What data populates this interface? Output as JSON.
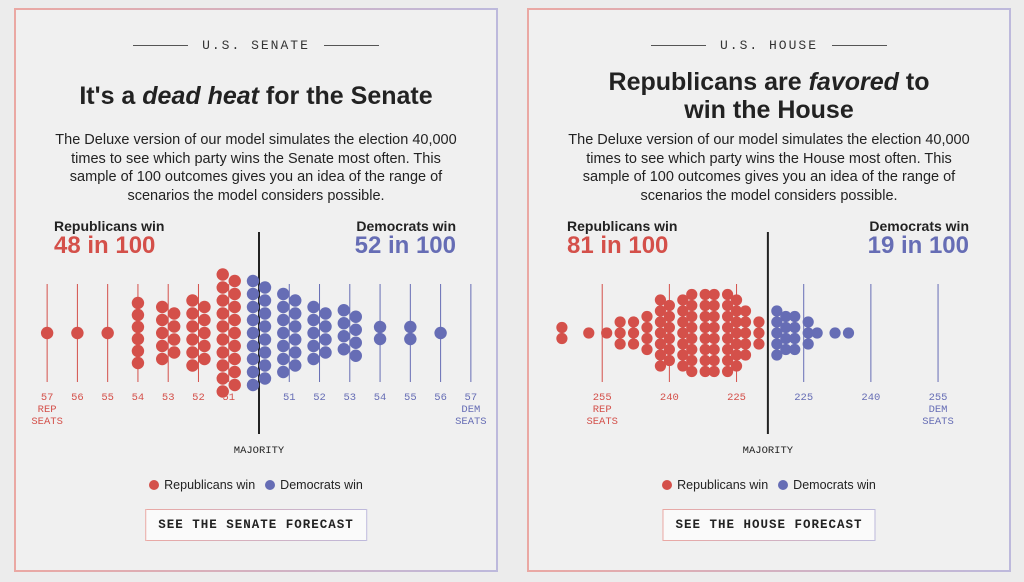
{
  "senate": {
    "kicker": "U.S. SENATE",
    "title_parts": [
      "It's a ",
      "dead heat",
      " for the Senate"
    ],
    "description": "The Deluxe version of our model simulates the election 40,000 times to see which party wins the Senate most often. This sample of 100 outcomes gives you an idea of the range of scenarios the model considers possible.",
    "rep_label": "Republicans win",
    "rep_odds": "48 in 100",
    "dem_label": "Democrats win",
    "dem_odds": "52 in 100",
    "chart": {
      "type": "beeswarm",
      "xlim": [
        57.5,
        42.5
      ],
      "xticks": [
        57,
        56,
        55,
        54,
        53,
        52,
        51,
        {
          "value": 49,
          "label": "51"
        },
        {
          "value": 48,
          "label": "52"
        },
        {
          "value": 47,
          "label": "53"
        },
        {
          "value": 46,
          "label": "54"
        },
        {
          "value": 45,
          "label": "55"
        },
        {
          "value": 44,
          "label": "56"
        },
        {
          "value": 43,
          "label": "57"
        }
      ],
      "majority": 50,
      "majority_label": "MAJORITY",
      "rep_axis_label": [
        "REP",
        "SEATS"
      ],
      "dem_axis_label": [
        "DEM",
        "SEATS"
      ],
      "series": [
        {
          "name": "Republicans win",
          "color": "#d4504a",
          "columns": [
            {
              "seats": 57,
              "count": 1
            },
            {
              "seats": 56,
              "count": 1
            },
            {
              "seats": 55,
              "count": 1
            },
            {
              "seats": 54,
              "count": 6
            },
            {
              "seats": 53,
              "count": 9
            },
            {
              "seats": 52,
              "count": 11
            },
            {
              "seats": 51,
              "count": 19
            }
          ]
        },
        {
          "name": "Democrats win",
          "color": "#666db5",
          "columns": [
            {
              "seats": 50,
              "count": 17
            },
            {
              "seats": 49,
              "count": 13
            },
            {
              "seats": 48,
              "count": 9
            },
            {
              "seats": 47,
              "count": 8
            },
            {
              "seats": 46,
              "count": 2
            },
            {
              "seats": 45,
              "count": 2
            },
            {
              "seats": 44,
              "count": 1
            }
          ]
        }
      ]
    },
    "button": "SEE THE SENATE FORECAST"
  },
  "house": {
    "kicker": "U.S. HOUSE",
    "title_parts": [
      "Republicans are ",
      "favored",
      " to win the House"
    ],
    "description": "The Deluxe version of our model simulates the election 40,000 times to see which party wins the House most often. This sample of 100 outcomes gives you an idea of the range of scenarios the model considers possible.",
    "rep_label": "Republicans win",
    "rep_odds": "81 in 100",
    "dem_label": "Democrats win",
    "dem_odds": "19 in 100",
    "chart": {
      "type": "beeswarm",
      "xlim": [
        268,
        178
      ],
      "xticks": [
        255,
        240,
        225,
        {
          "value": 210,
          "label": "225"
        },
        {
          "value": 195,
          "label": "240"
        },
        {
          "value": 180,
          "label": "255"
        }
      ],
      "majority": 218,
      "majority_label": "MAJORITY",
      "rep_axis_label": [
        "REP",
        "SEATS"
      ],
      "dem_axis_label": [
        "DEM",
        "SEATS"
      ],
      "series": [
        {
          "name": "Republicans win",
          "color": "#d4504a",
          "columns": [
            {
              "seats": 264,
              "count": 2
            },
            {
              "seats": 258,
              "count": 1
            },
            {
              "seats": 254,
              "count": 1
            },
            {
              "seats": 251,
              "count": 3
            },
            {
              "seats": 248,
              "count": 3
            },
            {
              "seats": 245,
              "count": 4
            },
            {
              "seats": 242,
              "count": 7
            },
            {
              "seats": 240,
              "count": 6
            },
            {
              "seats": 237,
              "count": 7
            },
            {
              "seats": 235,
              "count": 8
            },
            {
              "seats": 232,
              "count": 8
            },
            {
              "seats": 230,
              "count": 8
            },
            {
              "seats": 227,
              "count": 8
            },
            {
              "seats": 225,
              "count": 7
            },
            {
              "seats": 223,
              "count": 5
            },
            {
              "seats": 220,
              "count": 3
            }
          ]
        },
        {
          "name": "Democrats win",
          "color": "#666db5",
          "columns": [
            {
              "seats": 216,
              "count": 5
            },
            {
              "seats": 214,
              "count": 4
            },
            {
              "seats": 212,
              "count": 4
            },
            {
              "seats": 209,
              "count": 3
            },
            {
              "seats": 207,
              "count": 1
            },
            {
              "seats": 203,
              "count": 1
            },
            {
              "seats": 200,
              "count": 1
            }
          ]
        }
      ]
    },
    "button": "SEE THE HOUSE FORECAST"
  }
}
